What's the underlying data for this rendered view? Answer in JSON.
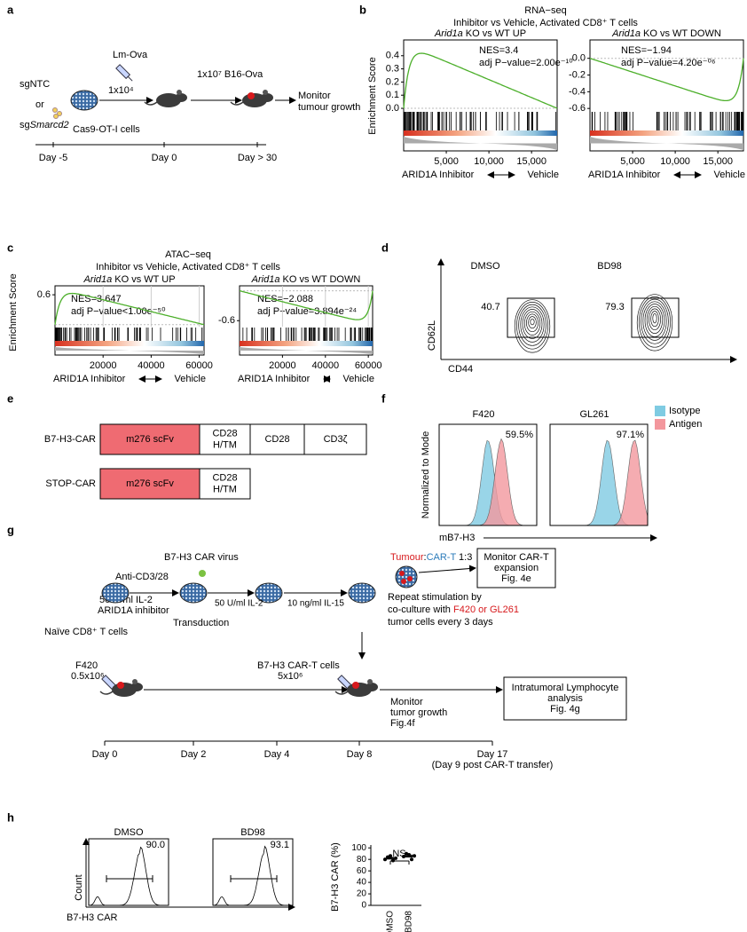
{
  "a": {
    "label": "a",
    "sg_ntc": "sgNTC",
    "or": "or",
    "sg_prefix": "sg",
    "sg_gene": "Smarcd2",
    "cells": "Cas9-OT-I cells",
    "lm": "Lm-Ova",
    "dose1": "1x10⁴",
    "dose2": "1x10⁷ B16-Ova",
    "monitor": [
      "Monitor",
      "tumour growth"
    ],
    "days": [
      "Day -5",
      "Day 0",
      "Day > 30"
    ]
  },
  "b": {
    "label": "b",
    "title": "RNA−seq",
    "subtitle": "Inhibitor vs Vehicle, Activated CD8⁺ T cells",
    "y_label": "Enrichment Score",
    "charts": [
      {
        "type": "line",
        "gene": "Arid1a",
        "title": " KO vs WT UP",
        "annotations": [
          "NES=3.4",
          "adj P−value=2.00e⁻¹⁰"
        ],
        "xlim": [
          0,
          18000
        ],
        "xticks": [
          {
            "value": 5000,
            "label": "5,000"
          },
          {
            "value": 10000,
            "label": "10,000"
          },
          {
            "value": 15000,
            "label": "15,000"
          }
        ],
        "ylim": [
          -0.02,
          0.52
        ],
        "yticks": [
          {
            "value": 0,
            "label": "0.0"
          },
          0.1,
          0.2,
          0.3,
          0.4
        ],
        "x_left": "ARID1A Inhibitor",
        "x_right": "Vehicle"
      },
      {
        "type": "line",
        "gene": "Arid1a",
        "title": " KO vs WT DOWN",
        "annotations": [
          "NES=−1.94",
          "adj P−value=4.20e⁻⁰⁶"
        ],
        "xlim": [
          0,
          18000
        ],
        "xticks": [
          {
            "value": 5000,
            "label": "5,000"
          },
          {
            "value": 10000,
            "label": "10,000"
          },
          {
            "value": 15000,
            "label": "15,000"
          }
        ],
        "ylim": [
          -0.63,
          0.22
        ],
        "yticks": [
          {
            "value": 0,
            "label": "0.0"
          },
          -0.2,
          -0.4,
          -0.6
        ],
        "x_left": "ARID1A Inhibitor",
        "x_right": "Vehicle"
      }
    ]
  },
  "c": {
    "label": "c",
    "title": "ATAC−seq",
    "subtitle": "Inhibitor vs Vehicle, Activated CD8⁺ T cells",
    "y_label": "Enrichment Score",
    "charts": [
      {
        "type": "line",
        "gene": "Arid1a",
        "title": " KO vs WT UP",
        "annotations": [
          "NES=3.647",
          "adj P−value<1.00e⁻⁵⁰"
        ],
        "xlim": [
          0,
          62000
        ],
        "xticks": [
          20000,
          40000,
          60000
        ],
        "ylim": [
          -0.04,
          0.78
        ],
        "yticks": [
          0.6
        ],
        "x_left": "ARID1A Inhibitor",
        "x_right": "Vehicle"
      },
      {
        "type": "line",
        "gene": "Arid1a",
        "title": " KO vs WT DOWN",
        "annotations": [
          "NES=−2.088",
          "adj P−value=3.894e⁻²⁴"
        ],
        "xlim": [
          0,
          62000
        ],
        "xticks": [
          20000,
          40000,
          60000
        ],
        "ylim": [
          -0.72,
          0.1
        ],
        "yticks": [
          -0.6
        ],
        "x_left": "ARID1A Inhibitor",
        "x_right": "Vehicle"
      }
    ]
  },
  "d": {
    "label": "d",
    "samples": [
      {
        "name": "DMSO",
        "gate": 40.7
      },
      {
        "name": "BD98",
        "gate": 79.3
      }
    ],
    "y_label": "CD62L",
    "x_label": "CD44"
  },
  "e": {
    "label": "e",
    "constructs": [
      {
        "name": "B7-H3-CAR",
        "domains": [
          [
            "m276 scFv"
          ],
          [
            "CD28",
            "H/TM"
          ],
          [
            "CD28"
          ],
          [
            "CD3ζ"
          ]
        ]
      },
      {
        "name": "STOP-CAR",
        "domains": [
          [
            "m276 scFv"
          ],
          [
            "CD28",
            "H/TM"
          ]
        ]
      }
    ]
  },
  "f": {
    "label": "f",
    "samples": [
      {
        "name": "F420",
        "value": 59.5,
        "value_label": "59.5%"
      },
      {
        "name": "GL261",
        "value": 97.1,
        "value_label": "97.1%"
      }
    ],
    "legend": [
      {
        "name": "Isotype",
        "color": "#7fcbe2"
      },
      {
        "name": "Antigen",
        "color": "#f3979d"
      }
    ],
    "y_label": "Normalized to Mode",
    "x_label": "mB7-H3"
  },
  "g": {
    "label": "g",
    "virus": "B7-H3 CAR virus",
    "anti": "Anti-CD3/28",
    "il2a": "50 U/ml IL-2",
    "inhibitor": "ARID1A inhibitor",
    "naive": "Naïve CD8⁺ T cells",
    "transduction": "Transduction",
    "il2b": "50 U/ml IL-2",
    "il15": "10 ng/ml IL-15",
    "ratio": [
      {
        "text": "Tumour",
        "color": "#d7191c"
      },
      {
        "text": ":",
        "color": "#000000"
      },
      {
        "text": "CAR-T",
        "color": "#2b7bba"
      },
      {
        "text": " 1:3",
        "color": "#000000"
      }
    ],
    "box1": [
      "Monitor CAR-T",
      "expansion",
      "Fig. 4e"
    ],
    "repeat": [
      "Repeat stimulation by",
      "tumor cells every 3 days"
    ],
    "coculture": [
      {
        "text": "co-culture with ",
        "color": "#000000"
      },
      {
        "text": "F420 or GL261",
        "color": "#d7191c"
      }
    ],
    "f420": "F420",
    "f420_dose": "0.5x10⁶",
    "cart": "B7-H3 CAR-T cells",
    "cart_dose": "5x10⁶",
    "monitor": [
      "Monitor",
      "tumor growth",
      "Fig.4f"
    ],
    "box2": [
      "Intratumoral Lymphocyte",
      "analysis",
      "Fig. 4g"
    ],
    "days": [
      "Day 0",
      "Day 2",
      "Day 4",
      "Day 8",
      "Day 17"
    ],
    "day_note": "(Day 9 post CAR-T transfer)"
  },
  "h": {
    "label": "h",
    "samples": [
      {
        "name": "DMSO",
        "value": 90,
        "value_label": "90.0"
      },
      {
        "name": "BD98",
        "value": 93.1
      }
    ],
    "y_label": "Count",
    "x_label": "B7-H3 CAR",
    "dot_chart": {
      "type": "scatter",
      "categories": [
        "DMSO",
        "BD98"
      ],
      "values": [
        [
          80,
          84,
          86,
          78,
          82
        ],
        [
          85,
          90,
          88,
          80,
          86
        ]
      ],
      "ylim": [
        0,
        105
      ],
      "yticks": [
        0,
        20,
        40,
        60,
        80,
        100
      ],
      "y_label": "B7-H3 CAR (%)",
      "annotation": "NS"
    }
  }
}
